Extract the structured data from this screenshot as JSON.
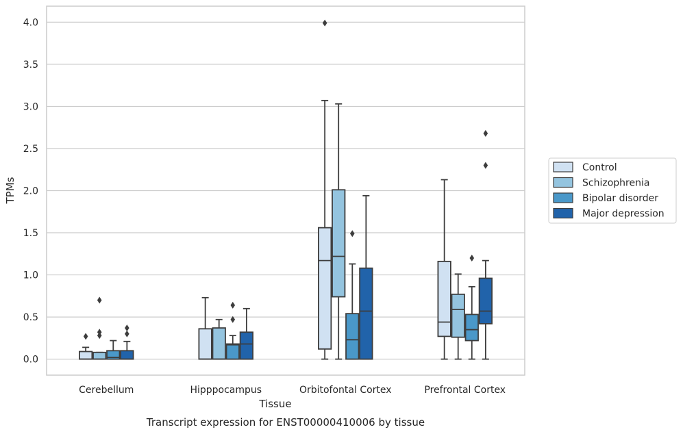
{
  "chart_data": {
    "type": "box",
    "xlabel": "Tissue",
    "ylabel": "TPMs",
    "caption": "Transcript expression for ENST00000410006 by tissue",
    "ylim": [
      -0.19,
      4.19
    ],
    "yticks": [
      "0.0",
      "0.5",
      "1.0",
      "1.5",
      "2.0",
      "2.5",
      "3.0",
      "3.5",
      "4.0"
    ],
    "grid": "horizontal",
    "legend_position": "right",
    "categories": [
      "Cerebellum",
      "Hipppocampus",
      "Orbitofontal Cortex",
      "Prefrontal Cortex"
    ],
    "series": [
      {
        "name": "Control",
        "color": "#d0e1f2",
        "boxes": [
          {
            "min": 0.0,
            "q1": 0.0,
            "median": 0.0,
            "q3": 0.09,
            "max": 0.14,
            "outliers": [
              0.27
            ]
          },
          {
            "min": 0.0,
            "q1": 0.0,
            "median": 0.0,
            "q3": 0.36,
            "max": 0.73,
            "outliers": []
          },
          {
            "min": 0.0,
            "q1": 0.12,
            "median": 1.17,
            "q3": 1.56,
            "max": 3.07,
            "outliers": [
              3.99
            ]
          },
          {
            "min": 0.0,
            "q1": 0.27,
            "median": 0.44,
            "q3": 1.16,
            "max": 2.13,
            "outliers": []
          }
        ]
      },
      {
        "name": "Schizophrenia",
        "color": "#94c4df",
        "boxes": [
          {
            "min": 0.0,
            "q1": 0.0,
            "median": 0.0,
            "q3": 0.08,
            "max": 0.08,
            "outliers": [
              0.28,
              0.32,
              0.7
            ]
          },
          {
            "min": 0.0,
            "q1": 0.0,
            "median": 0.0,
            "q3": 0.37,
            "max": 0.47,
            "outliers": []
          },
          {
            "min": 0.0,
            "q1": 0.74,
            "median": 1.22,
            "q3": 2.01,
            "max": 3.03,
            "outliers": []
          },
          {
            "min": 0.0,
            "q1": 0.26,
            "median": 0.59,
            "q3": 0.77,
            "max": 1.01,
            "outliers": []
          }
        ]
      },
      {
        "name": "Bipolar disorder",
        "color": "#4a98c9",
        "boxes": [
          {
            "min": 0.0,
            "q1": 0.0,
            "median": 0.02,
            "q3": 0.1,
            "max": 0.22,
            "outliers": []
          },
          {
            "min": 0.0,
            "q1": 0.0,
            "median": 0.17,
            "q3": 0.18,
            "max": 0.28,
            "outliers": [
              0.47,
              0.64
            ]
          },
          {
            "min": 0.0,
            "q1": 0.0,
            "median": 0.23,
            "q3": 0.54,
            "max": 1.13,
            "outliers": [
              1.49
            ]
          },
          {
            "min": 0.0,
            "q1": 0.22,
            "median": 0.35,
            "q3": 0.53,
            "max": 0.86,
            "outliers": [
              1.2
            ]
          }
        ]
      },
      {
        "name": "Major depression",
        "color": "#2163aa",
        "boxes": [
          {
            "min": 0.0,
            "q1": 0.0,
            "median": 0.0,
            "q3": 0.1,
            "max": 0.21,
            "outliers": [
              0.3,
              0.37
            ]
          },
          {
            "min": 0.0,
            "q1": 0.0,
            "median": 0.18,
            "q3": 0.32,
            "max": 0.6,
            "outliers": []
          },
          {
            "min": 0.0,
            "q1": 0.0,
            "median": 0.57,
            "q3": 1.08,
            "max": 1.94,
            "outliers": []
          },
          {
            "min": 0.0,
            "q1": 0.42,
            "median": 0.57,
            "q3": 0.96,
            "max": 1.17,
            "outliers": [
              2.3,
              2.68
            ]
          }
        ]
      }
    ]
  }
}
